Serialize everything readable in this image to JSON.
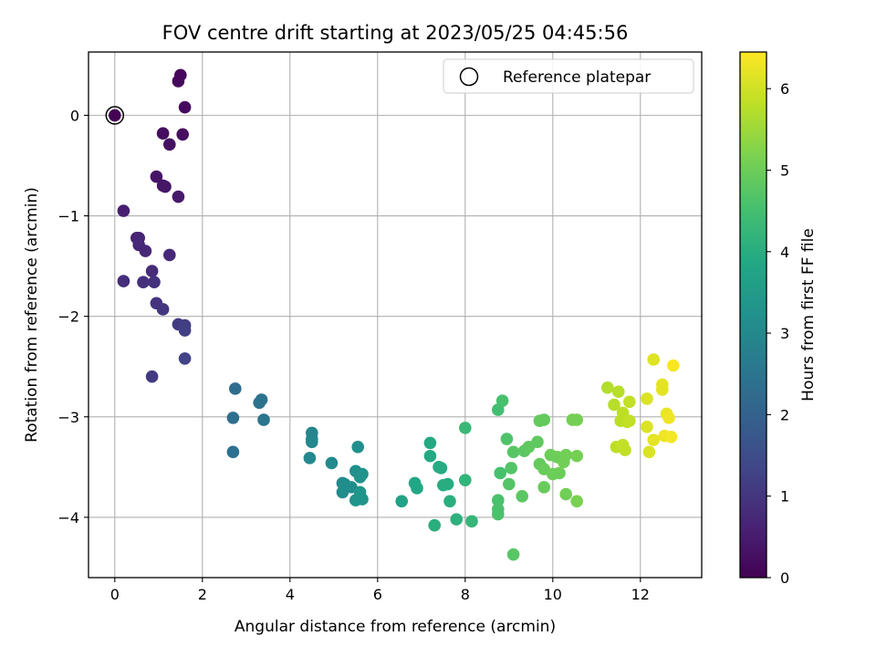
{
  "chart_data": {
    "type": "scatter",
    "title": "FOV centre drift starting at 2023/05/25 04:45:56",
    "xlabel": "Angular distance from reference (arcmin)",
    "ylabel": "Rotation from reference (arcmin)",
    "xlim": [
      -0.6,
      13.4
    ],
    "ylim": [
      -4.6,
      0.63
    ],
    "xticks": [
      0,
      2,
      4,
      6,
      8,
      10,
      12
    ],
    "xtick_labels": [
      "0",
      "2",
      "4",
      "6",
      "8",
      "10",
      "12"
    ],
    "yticks": [
      0,
      -1,
      -2,
      -3,
      -4
    ],
    "ytick_labels": [
      "0",
      "−1",
      "−2",
      "−3",
      "−4"
    ],
    "grid": true,
    "legend": {
      "label": "Reference platepar",
      "placement": "top-right",
      "marker": "hollow-circle"
    },
    "reference_point": {
      "x": 0,
      "y": 0
    },
    "colorbar": {
      "label": "Hours from first FF file",
      "colormap": "viridis",
      "range": [
        0,
        6.45
      ],
      "ticks": [
        0,
        1,
        2,
        3,
        4,
        5,
        6
      ],
      "tick_labels": [
        "0",
        "1",
        "2",
        "3",
        "4",
        "5",
        "6"
      ]
    },
    "series": [
      {
        "points": [
          [
            0,
            0,
            0.0
          ],
          [
            1.5,
            0.4,
            0.12
          ],
          [
            1.45,
            0.34,
            0.15
          ],
          [
            1.6,
            0.08,
            0.17
          ],
          [
            1.1,
            -0.18,
            0.22
          ],
          [
            1.55,
            -0.19,
            0.25
          ],
          [
            1.25,
            -0.29,
            0.28
          ],
          [
            0.95,
            -0.61,
            0.35
          ],
          [
            1.1,
            -0.7,
            0.4
          ],
          [
            1.15,
            -0.71,
            0.38
          ],
          [
            1.45,
            -0.81,
            0.45
          ],
          [
            0.2,
            -0.95,
            0.55
          ],
          [
            0.5,
            -1.22,
            0.6
          ],
          [
            0.55,
            -1.22,
            0.65
          ],
          [
            0.55,
            -1.29,
            0.7
          ],
          [
            0.7,
            -1.35,
            0.72
          ],
          [
            1.25,
            -1.39,
            0.75
          ],
          [
            0.85,
            -1.55,
            0.8
          ],
          [
            0.2,
            -1.65,
            0.85
          ],
          [
            0.65,
            -1.66,
            0.88
          ],
          [
            0.9,
            -1.66,
            0.9
          ],
          [
            0.95,
            -1.87,
            0.95
          ],
          [
            1.1,
            -1.93,
            1.0
          ],
          [
            1.45,
            -2.08,
            1.1
          ],
          [
            1.6,
            -2.09,
            1.15
          ],
          [
            1.6,
            -2.14,
            1.2
          ],
          [
            0.85,
            -2.6,
            1.1
          ],
          [
            1.6,
            -2.42,
            1.3
          ],
          [
            2.75,
            -2.72,
            2.3
          ],
          [
            2.7,
            -3.01,
            2.35
          ],
          [
            3.35,
            -2.83,
            2.4
          ],
          [
            3.3,
            -2.86,
            2.45
          ],
          [
            3.4,
            -3.03,
            2.5
          ],
          [
            2.7,
            -3.35,
            2.4
          ],
          [
            4.5,
            -3.16,
            2.9
          ],
          [
            4.5,
            -3.22,
            2.95
          ],
          [
            4.5,
            -3.25,
            3.0
          ],
          [
            4.45,
            -3.41,
            3.0
          ],
          [
            4.95,
            -3.46,
            3.05
          ],
          [
            5.2,
            -3.66,
            3.1
          ],
          [
            5.25,
            -3.67,
            3.1
          ],
          [
            5.2,
            -3.75,
            3.15
          ],
          [
            5.4,
            -3.7,
            3.15
          ],
          [
            5.5,
            -3.54,
            3.2
          ],
          [
            5.55,
            -3.3,
            3.2
          ],
          [
            5.6,
            -3.6,
            3.25
          ],
          [
            5.65,
            -3.57,
            3.25
          ],
          [
            5.5,
            -3.83,
            3.3
          ],
          [
            5.6,
            -3.75,
            3.3
          ],
          [
            5.65,
            -3.82,
            3.35
          ],
          [
            6.55,
            -3.84,
            3.7
          ],
          [
            6.85,
            -3.66,
            3.8
          ],
          [
            6.9,
            -3.71,
            3.85
          ],
          [
            7.2,
            -3.26,
            3.9
          ],
          [
            7.2,
            -3.39,
            3.9
          ],
          [
            7.4,
            -3.5,
            3.95
          ],
          [
            7.45,
            -3.51,
            3.95
          ],
          [
            7.5,
            -3.68,
            4.0
          ],
          [
            7.6,
            -3.67,
            4.0
          ],
          [
            7.65,
            -3.84,
            4.05
          ],
          [
            7.3,
            -4.08,
            4.05
          ],
          [
            7.8,
            -4.02,
            4.1
          ],
          [
            8.0,
            -3.63,
            4.2
          ],
          [
            8.0,
            -3.11,
            4.3
          ],
          [
            8.15,
            -4.04,
            4.25
          ],
          [
            8.75,
            -2.93,
            4.5
          ],
          [
            8.85,
            -2.84,
            4.55
          ],
          [
            8.8,
            -3.56,
            4.55
          ],
          [
            8.75,
            -3.83,
            4.6
          ],
          [
            8.75,
            -3.92,
            4.6
          ],
          [
            8.75,
            -3.97,
            4.6
          ],
          [
            8.95,
            -3.22,
            4.65
          ],
          [
            9.05,
            -3.51,
            4.7
          ],
          [
            9.0,
            -3.67,
            4.7
          ],
          [
            9.1,
            -3.35,
            4.75
          ],
          [
            9.1,
            -4.37,
            4.75
          ],
          [
            9.3,
            -3.79,
            4.8
          ],
          [
            9.35,
            -3.34,
            4.8
          ],
          [
            9.45,
            -3.3,
            4.85
          ],
          [
            9.65,
            -3.25,
            4.85
          ],
          [
            9.7,
            -3.04,
            4.9
          ],
          [
            9.8,
            -3.03,
            4.9
          ],
          [
            9.7,
            -3.47,
            4.9
          ],
          [
            9.8,
            -3.52,
            4.95
          ],
          [
            9.8,
            -3.7,
            4.95
          ],
          [
            9.95,
            -3.38,
            5.0
          ],
          [
            10.0,
            -3.57,
            5.0
          ],
          [
            10.1,
            -3.4,
            5.0
          ],
          [
            10.15,
            -3.56,
            5.0
          ],
          [
            10.25,
            -3.45,
            5.05
          ],
          [
            10.3,
            -3.38,
            5.05
          ],
          [
            10.3,
            -3.77,
            5.05
          ],
          [
            10.45,
            -3.03,
            5.1
          ],
          [
            10.55,
            -3.03,
            5.1
          ],
          [
            10.55,
            -3.39,
            5.1
          ],
          [
            10.55,
            -3.84,
            5.15
          ],
          [
            11.25,
            -2.71,
            5.7
          ],
          [
            11.4,
            -2.88,
            5.75
          ],
          [
            11.5,
            -2.75,
            5.75
          ],
          [
            11.6,
            -2.96,
            5.8
          ],
          [
            11.55,
            -3.04,
            5.8
          ],
          [
            11.7,
            -3.05,
            5.8
          ],
          [
            11.45,
            -3.3,
            5.8
          ],
          [
            11.6,
            -3.28,
            5.85
          ],
          [
            11.65,
            -3.33,
            5.85
          ],
          [
            11.75,
            -2.85,
            5.85
          ],
          [
            11.75,
            -3.04,
            5.85
          ],
          [
            12.15,
            -2.82,
            6.1
          ],
          [
            12.2,
            -3.35,
            6.1
          ],
          [
            12.15,
            -3.1,
            6.1
          ],
          [
            12.3,
            -2.43,
            6.15
          ],
          [
            12.5,
            -2.68,
            6.2
          ],
          [
            12.5,
            -2.73,
            6.2
          ],
          [
            12.3,
            -3.23,
            6.2
          ],
          [
            12.6,
            -2.97,
            6.25
          ],
          [
            12.65,
            -3.01,
            6.3
          ],
          [
            12.55,
            -3.19,
            6.3
          ],
          [
            12.7,
            -3.2,
            6.35
          ],
          [
            12.75,
            -2.49,
            6.4
          ]
        ]
      }
    ]
  }
}
